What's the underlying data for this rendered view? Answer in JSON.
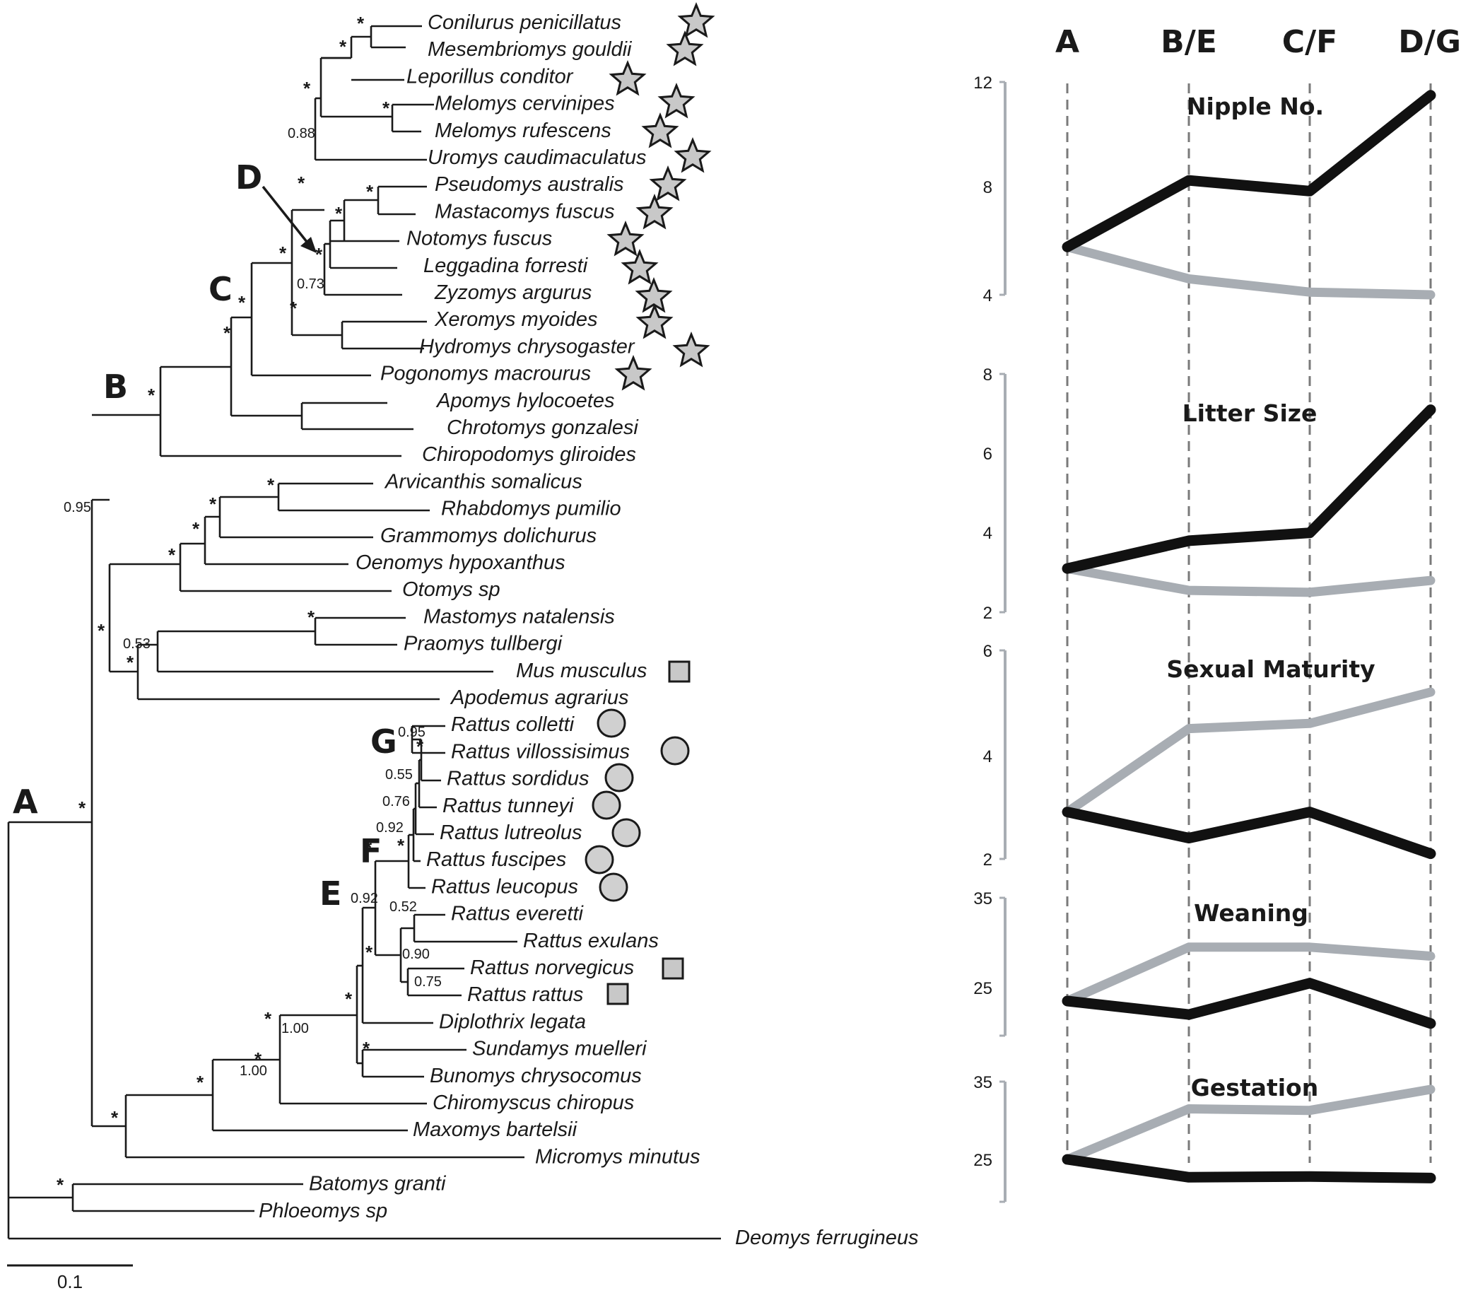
{
  "tree": {
    "taxa": [
      "Conilurus penicillatus",
      "Mesembriomys gouldii",
      "Leporillus conditor",
      "Melomys cervinipes",
      "Melomys rufescens",
      "Uromys caudimaculatus",
      "Pseudomys australis",
      "Mastacomys fuscus",
      "Notomys fuscus",
      "Leggadina forresti",
      "Zyzomys argurus",
      "Xeromys myoides",
      "Hydromys chrysogaster",
      "Pogonomys macrourus",
      "Apomys hylocoetes",
      "Chrotomys gonzalesi",
      "Chiropodomys gliroides",
      "Arvicanthis somalicus",
      "Rhabdomys pumilio",
      "Grammomys dolichurus",
      "Oenomys hypoxanthus",
      "Otomys sp",
      "Mastomys natalensis",
      "Praomys tullbergi",
      "Mus musculus",
      "Apodemus agrarius",
      "Rattus colletti",
      "Rattus villossisimus",
      "Rattus sordidus",
      "Rattus tunneyi",
      "Rattus lutreolus",
      "Rattus fuscipes",
      "Rattus leucopus",
      "Rattus everetti",
      "Rattus exulans",
      "Rattus norvegicus",
      "Rattus rattus",
      "Diplothrix legata",
      "Sundamys muelleri",
      "Bunomys chrysocomus",
      "Chiromyscus chiropus",
      "Maxomys bartelsii",
      "Micromys minutus",
      "Batomys granti",
      "Phloeomys sp",
      "Deomys ferrugineus"
    ],
    "clade_labels": [
      "A",
      "B",
      "C",
      "D",
      "E",
      "F",
      "G"
    ],
    "support_values": {
      "star": "*",
      "numeric": [
        "0.88",
        "0.73",
        "0.95",
        "0.53",
        "0.95",
        "0.55",
        "0.76",
        "0.92",
        "0.92",
        "0.52",
        "0.90",
        "0.75",
        "1.00",
        "1.00"
      ]
    },
    "scale_bar_label": "0.1"
  },
  "traits_panel": {
    "columns": [
      "A",
      "B/E",
      "C/F",
      "D/G"
    ],
    "colors": {
      "dark_line": "#111111",
      "light_line": "#a8adb3",
      "axis": "#a8adb3",
      "guide": "#7a7a7a"
    },
    "traits": [
      {
        "title": "Nipple No.",
        "ticks": [
          "12",
          "8",
          "4"
        ],
        "dark": [
          5.8,
          8.3,
          7.9,
          11.5
        ],
        "light": [
          5.8,
          4.6,
          4.1,
          4.0
        ]
      },
      {
        "title": "Litter Size",
        "ticks": [
          "8",
          "6",
          "4",
          "2"
        ],
        "dark": [
          3.1,
          3.8,
          4.0,
          7.1
        ],
        "light": [
          3.1,
          2.55,
          2.5,
          2.8
        ]
      },
      {
        "title": "Sexual Maturity",
        "ticks": [
          "6",
          "4",
          "2"
        ],
        "dark": [
          2.9,
          2.4,
          2.9,
          2.1
        ],
        "light": [
          2.9,
          4.5,
          4.6,
          5.2
        ]
      },
      {
        "title": "Weaning",
        "ticks": [
          "35",
          "25"
        ],
        "dark": [
          23.5,
          22.0,
          25.5,
          21.0
        ],
        "light": [
          23.5,
          29.5,
          29.5,
          28.5
        ]
      },
      {
        "title": "Gestation",
        "ticks": [
          "35",
          "25"
        ],
        "dark": [
          25.0,
          22.7,
          22.8,
          22.6
        ],
        "light": [
          25.0,
          31.5,
          31.3,
          34.0
        ]
      }
    ]
  }
}
